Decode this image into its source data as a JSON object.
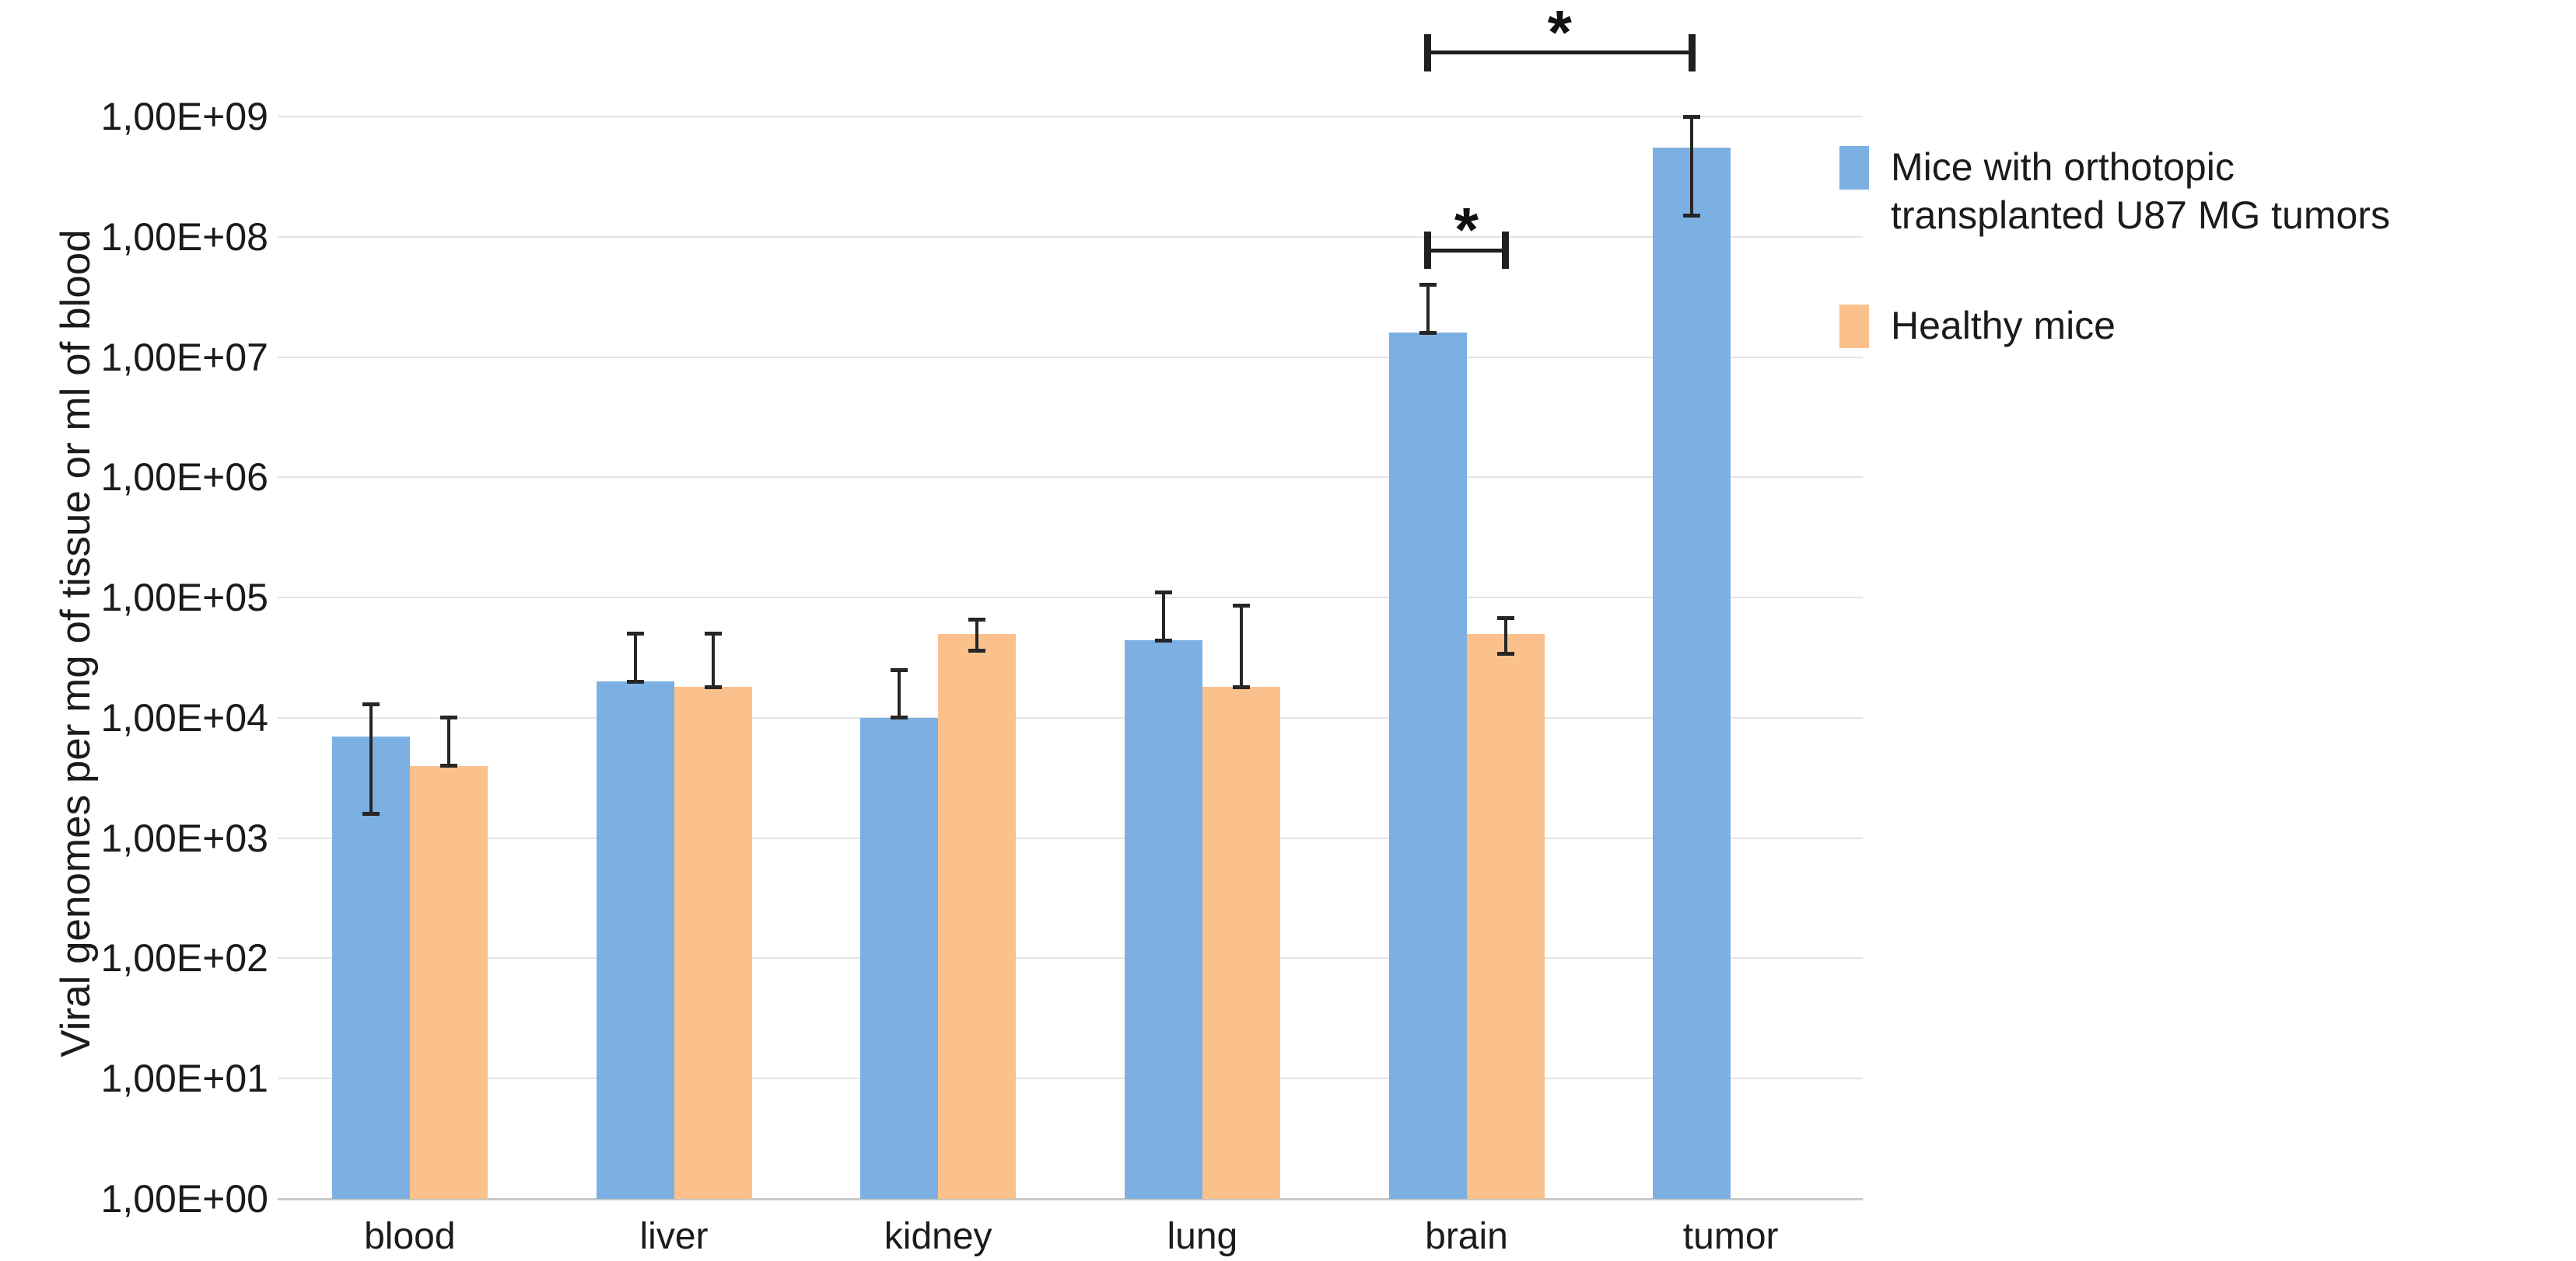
{
  "figure": {
    "background": "#ffffff",
    "y_axis": {
      "title": "Viral genomes per mg of tissue or ml of blood",
      "tick_labels": [
        "1,00E+00",
        "1,00E+01",
        "1,00E+02",
        "1,00E+03",
        "1,00E+04",
        "1,00E+05",
        "1,00E+06",
        "1,00E+07",
        "1,00E+08",
        "1,00E+09"
      ]
    },
    "legend": {
      "position": "right",
      "entries": [
        {
          "label": "Mice with orthotopic\ntransplanted U87 MG tumors",
          "color": "#7CB0E2"
        },
        {
          "label": "Healthy mice",
          "color": "#FBC18D"
        }
      ]
    },
    "colors": {
      "grid": "#e4e4e4",
      "axis_line": "#c9c9c9",
      "error_bar": "#262626",
      "annotation": "#1f1f1f"
    }
  },
  "chart_data": {
    "type": "bar",
    "scale": "log10",
    "title": "",
    "xlabel": "",
    "ylabel": "Viral genomes per mg of tissue or ml of blood",
    "ylim": [
      1,
      1000000000
    ],
    "grid": "horizontal",
    "legend_position": "right",
    "categories": [
      "blood",
      "liver",
      "kidney",
      "lung",
      "brain",
      "tumor"
    ],
    "series": [
      {
        "name": "Mice with orthotopic transplanted U87 MG tumors",
        "color": "#7CB0E2",
        "values": [
          7000,
          20000,
          10000,
          44000,
          16000000,
          550000000
        ],
        "error_high": [
          13000,
          50000,
          25000,
          110000,
          40000000,
          1000000000
        ],
        "error_low": [
          1600,
          null,
          null,
          null,
          null,
          150000000
        ]
      },
      {
        "name": "Healthy mice",
        "color": "#FBC18D",
        "values": [
          4000,
          18000,
          50000,
          18000,
          50000,
          null
        ],
        "error_high": [
          10000,
          50000,
          66000,
          86000,
          68000,
          null
        ],
        "error_low": [
          null,
          null,
          36000,
          null,
          34000,
          null
        ]
      }
    ],
    "annotations": [
      {
        "label": "*",
        "category_a": "brain",
        "series_a": 0,
        "category_b": "tumor",
        "series_b": 0,
        "y_value": 3400000000
      },
      {
        "label": "*",
        "category_a": "brain",
        "series_a": 0,
        "category_b": "brain",
        "series_b": 1,
        "y_value": 77000000
      }
    ]
  }
}
